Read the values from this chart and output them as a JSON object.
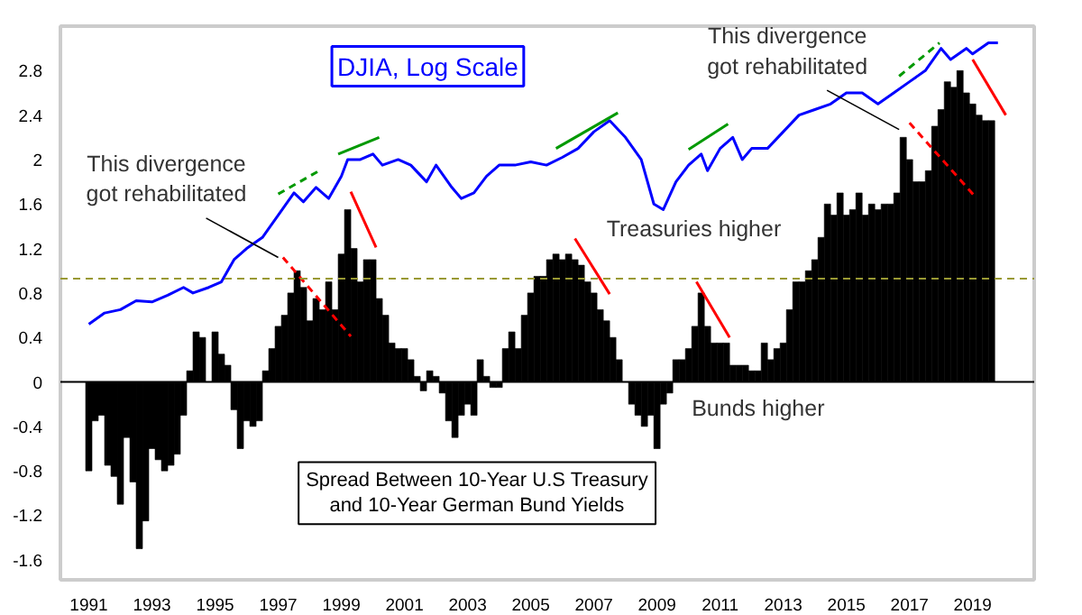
{
  "chart_data": {
    "type": "bar",
    "title": "Spread Between 10-Year U.S Treasury\nand 10-Year German Bund Yields",
    "xlim": [
      1990.1,
      2020.95
    ],
    "ylim": [
      -1.78,
      3.2
    ],
    "xticks": [
      1991,
      1993,
      1995,
      1997,
      1999,
      2001,
      2003,
      2005,
      2007,
      2009,
      2011,
      2013,
      2015,
      2017,
      2019
    ],
    "yticks": [
      -1.6,
      -1.2,
      -0.8,
      -0.4,
      0,
      0.4,
      0.8,
      1.2,
      1.6,
      2,
      2.4,
      2.8
    ],
    "grid": false,
    "legend": false,
    "series": [
      {
        "color": "#000000",
        "x": [
          1991.0,
          1991.2,
          1991.4,
          1991.6,
          1991.8,
          1992.0,
          1992.2,
          1992.4,
          1992.6,
          1992.8,
          1993.0,
          1993.2,
          1993.4,
          1993.6,
          1993.8,
          1994.0,
          1994.2,
          1994.4,
          1994.6,
          1994.8,
          1995.0,
          1995.2,
          1995.4,
          1995.6,
          1995.8,
          1996.0,
          1996.2,
          1996.4,
          1996.6,
          1996.8,
          1997.0,
          1997.2,
          1997.4,
          1997.6,
          1997.8,
          1998.0,
          1998.2,
          1998.4,
          1998.6,
          1998.8,
          1999.0,
          1999.2,
          1999.4,
          1999.6,
          1999.8,
          2000.0,
          2000.2,
          2000.4,
          2000.6,
          2000.8,
          2001.0,
          2001.2,
          2001.4,
          2001.6,
          2001.8,
          2002.0,
          2002.2,
          2002.4,
          2002.6,
          2002.8,
          2003.0,
          2003.2,
          2003.4,
          2003.6,
          2003.8,
          2004.0,
          2004.2,
          2004.4,
          2004.6,
          2004.8,
          2005.0,
          2005.2,
          2005.4,
          2005.6,
          2005.8,
          2006.0,
          2006.2,
          2006.4,
          2006.6,
          2006.8,
          2007.0,
          2007.2,
          2007.4,
          2007.6,
          2007.8,
          2008.0,
          2008.2,
          2008.4,
          2008.6,
          2008.8,
          2009.0,
          2009.2,
          2009.4,
          2009.6,
          2009.8,
          2010.0,
          2010.2,
          2010.4,
          2010.6,
          2010.8,
          2011.0,
          2011.2,
          2011.4,
          2011.6,
          2011.8,
          2012.0,
          2012.2,
          2012.4,
          2012.6,
          2012.8,
          2013.0,
          2013.2,
          2013.4,
          2013.6,
          2013.8,
          2014.0,
          2014.2,
          2014.4,
          2014.6,
          2014.8,
          2015.0,
          2015.2,
          2015.4,
          2015.6,
          2015.8,
          2016.0,
          2016.2,
          2016.4,
          2016.6,
          2016.8,
          2017.0,
          2017.2,
          2017.4,
          2017.6,
          2017.8,
          2018.0,
          2018.2,
          2018.4,
          2018.6,
          2018.8,
          2019.0,
          2019.2,
          2019.4,
          2019.6
        ],
        "values": [
          -0.8,
          -0.35,
          -0.3,
          -0.75,
          -0.85,
          -1.1,
          -0.5,
          -0.9,
          -1.5,
          -1.25,
          -0.6,
          -0.7,
          -0.8,
          -0.75,
          -0.65,
          -0.3,
          0.1,
          0.45,
          0.4,
          0.0,
          0.45,
          0.25,
          0.15,
          -0.25,
          -0.6,
          -0.35,
          -0.4,
          -0.35,
          0.1,
          0.3,
          0.5,
          0.6,
          0.8,
          1.0,
          0.85,
          0.55,
          0.75,
          0.65,
          0.9,
          0.65,
          1.15,
          1.55,
          1.2,
          0.9,
          1.1,
          1.1,
          0.75,
          0.6,
          0.35,
          0.3,
          0.3,
          0.2,
          0.05,
          -0.08,
          0.1,
          0.05,
          -0.1,
          -0.35,
          -0.5,
          -0.3,
          -0.2,
          -0.3,
          0.2,
          0.05,
          -0.05,
          -0.05,
          0.3,
          0.45,
          0.3,
          0.6,
          0.8,
          0.95,
          0.95,
          1.1,
          1.15,
          1.1,
          1.15,
          1.1,
          1.05,
          0.9,
          0.8,
          0.65,
          0.55,
          0.4,
          0.2,
          0.0,
          -0.2,
          -0.3,
          -0.4,
          -0.3,
          -0.6,
          -0.2,
          -0.1,
          0.2,
          0.2,
          0.3,
          0.5,
          0.8,
          0.5,
          0.35,
          0.35,
          0.35,
          0.15,
          0.15,
          0.15,
          0.1,
          0.1,
          0.35,
          0.2,
          0.3,
          0.35,
          0.65,
          0.9,
          0.9,
          1.0,
          1.1,
          1.3,
          1.6,
          1.5,
          1.7,
          1.5,
          1.55,
          1.7,
          1.5,
          1.6,
          1.55,
          1.6,
          1.6,
          1.7,
          2.2,
          2.0,
          1.8,
          1.8,
          1.9,
          2.3,
          2.45,
          2.7,
          2.65,
          2.8,
          2.6,
          2.5,
          2.4,
          2.35,
          2.35
        ]
      },
      {
        "type": "line",
        "name": "DJIA, Log Scale",
        "color": "#0000ff",
        "x": [
          1991.0,
          1991.5,
          1992.0,
          1992.5,
          1993.0,
          1993.5,
          1994.0,
          1994.3,
          1994.8,
          1995.2,
          1995.6,
          1996.0,
          1996.5,
          1997.0,
          1997.5,
          1997.8,
          1998.2,
          1998.6,
          1999.0,
          1999.2,
          1999.6,
          2000.0,
          2000.3,
          2000.8,
          2001.2,
          2001.7,
          2002.0,
          2002.5,
          2002.8,
          2003.2,
          2003.6,
          2004.0,
          2004.5,
          2005.0,
          2005.5,
          2006.0,
          2006.5,
          2007.0,
          2007.5,
          2008.0,
          2008.5,
          2008.9,
          2009.2,
          2009.6,
          2010.0,
          2010.4,
          2010.6,
          2011.0,
          2011.4,
          2011.7,
          2012.0,
          2012.5,
          2013.0,
          2013.5,
          2014.0,
          2014.5,
          2015.0,
          2015.5,
          2016.0,
          2016.5,
          2017.0,
          2017.5,
          2018.0,
          2018.3,
          2018.8,
          2019.0,
          2019.5,
          2019.8
        ],
        "values": [
          0.52,
          0.62,
          0.65,
          0.73,
          0.72,
          0.78,
          0.85,
          0.8,
          0.85,
          0.9,
          1.1,
          1.2,
          1.3,
          1.5,
          1.7,
          1.62,
          1.75,
          1.65,
          1.85,
          2.0,
          2.0,
          2.05,
          1.95,
          2.0,
          1.95,
          1.8,
          1.95,
          1.75,
          1.65,
          1.7,
          1.85,
          1.95,
          1.95,
          1.98,
          1.95,
          2.02,
          2.1,
          2.25,
          2.35,
          2.2,
          2.0,
          1.6,
          1.55,
          1.8,
          1.95,
          2.05,
          1.9,
          2.1,
          2.2,
          2.0,
          2.1,
          2.1,
          2.25,
          2.4,
          2.45,
          2.5,
          2.6,
          2.6,
          2.5,
          2.6,
          2.7,
          2.8,
          3.0,
          2.9,
          3.0,
          2.95,
          3.05,
          3.05
        ]
      },
      {
        "type": "line",
        "color": "#009900",
        "line_style": "dashed",
        "x": [
          1997.0,
          1998.3
        ],
        "values": [
          1.69,
          1.9
        ]
      },
      {
        "type": "line",
        "color": "#009900",
        "line_style": "solid",
        "x": [
          1998.9,
          2000.2
        ],
        "values": [
          2.05,
          2.2
        ]
      },
      {
        "type": "line",
        "color": "#009900",
        "line_style": "solid",
        "x": [
          2005.8,
          2007.76
        ],
        "values": [
          2.1,
          2.42
        ]
      },
      {
        "type": "line",
        "color": "#009900",
        "line_style": "solid",
        "x": [
          2010.0,
          2011.25
        ],
        "values": [
          2.09,
          2.32
        ]
      },
      {
        "type": "line",
        "color": "#009900",
        "line_style": "dashed",
        "x": [
          2016.67,
          2017.95
        ],
        "values": [
          2.75,
          3.05
        ]
      },
      {
        "type": "line",
        "color": "#ff0000",
        "line_style": "dashed",
        "x": [
          1997.15,
          1999.3
        ],
        "values": [
          1.12,
          0.41
        ]
      },
      {
        "type": "line",
        "color": "#ff0000",
        "line_style": "solid",
        "x": [
          1999.3,
          2000.1
        ],
        "values": [
          1.71,
          1.21
        ]
      },
      {
        "type": "line",
        "color": "#ff0000",
        "line_style": "solid",
        "x": [
          2006.4,
          2007.5
        ],
        "values": [
          1.29,
          0.79
        ]
      },
      {
        "type": "line",
        "color": "#ff0000",
        "line_style": "solid",
        "x": [
          2010.25,
          2011.3
        ],
        "values": [
          0.9,
          0.4
        ]
      },
      {
        "type": "line",
        "color": "#ff0000",
        "line_style": "dashed",
        "x": [
          2017.0,
          2019.1
        ],
        "values": [
          2.33,
          1.66
        ]
      },
      {
        "type": "line",
        "color": "#ff0000",
        "line_style": "solid",
        "x": [
          2019.0,
          2020.05
        ],
        "values": [
          2.9,
          2.4
        ]
      }
    ],
    "ref_lines": [
      {
        "axis": "y",
        "value": 0.93,
        "color": "#999933",
        "line_style": "dashed"
      },
      {
        "axis": "y",
        "value": 0,
        "color": "#000000",
        "line_style": "solid"
      }
    ],
    "annotations": [
      {
        "text": "This divergence\ngot rehabilitated",
        "x": 1997.0,
        "y": 1.12
      },
      {
        "text": "This divergence\ngot rehabilitated",
        "x": 2016.67,
        "y": 2.27
      },
      "Treasuries higher",
      "Bunds higher"
    ]
  }
}
